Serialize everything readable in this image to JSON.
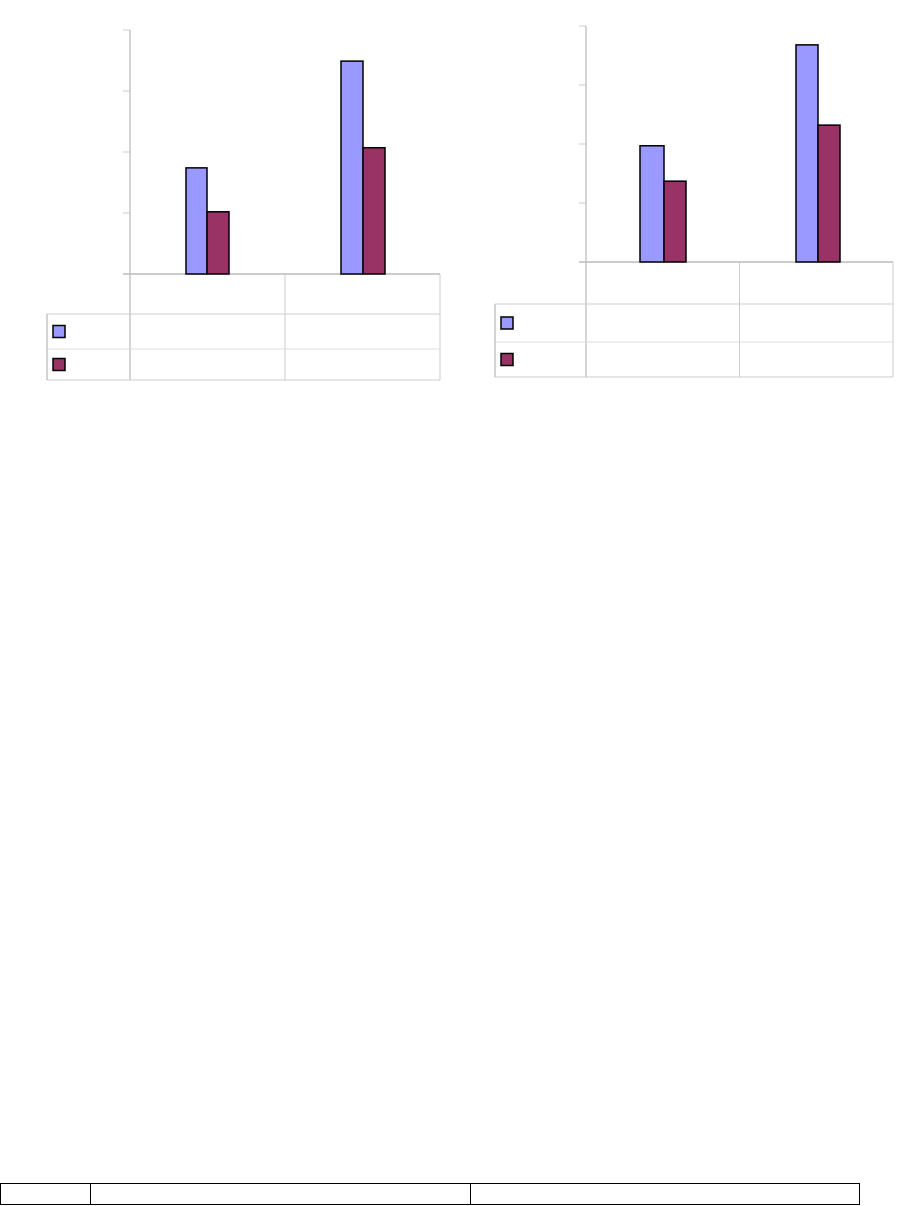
{
  "chart_data": [
    {
      "type": "bar",
      "categories": [
        "",
        ""
      ],
      "series": [
        {
          "values": [
            1.74,
            3.49
          ],
          "color": "#9999ff"
        },
        {
          "values": [
            1.02,
            2.07
          ],
          "color": "#993366"
        }
      ],
      "ylim": [
        0,
        4
      ],
      "grid": true,
      "legend": "data-table-left"
    },
    {
      "type": "bar",
      "categories": [
        "",
        ""
      ],
      "series": [
        {
          "values": [
            1.97,
            3.68
          ],
          "color": "#9999ff"
        },
        {
          "values": [
            1.37,
            2.32
          ],
          "color": "#993366"
        }
      ],
      "ylim": [
        0,
        4
      ],
      "grid": true,
      "legend": "data-table-left"
    }
  ],
  "footer_table": {
    "cells": [
      "",
      "",
      ""
    ]
  }
}
